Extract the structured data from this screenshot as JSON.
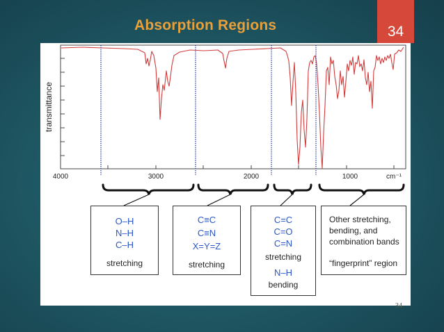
{
  "slide": {
    "title": "Absorption Regions",
    "number": "34",
    "page_number": "34"
  },
  "spectrum": {
    "ylabel": "transmittance",
    "xlabel_unit": "cm⁻¹",
    "tick_labels": [
      "4000",
      "3000",
      "2000",
      "1000"
    ]
  },
  "regions": [
    {
      "lines": [
        "O–H",
        "N–H",
        "C–H"
      ],
      "caption": "stretching"
    },
    {
      "lines": [
        "C≡C",
        "C≡N",
        "X=Y=Z"
      ],
      "caption": "stretching"
    },
    {
      "lines": [
        "C=C",
        "C=O",
        "C=N"
      ],
      "caption": "stretching",
      "extra": "N–H",
      "extra_caption": "bending"
    },
    {
      "text": [
        "Other stretching,",
        "bending, and",
        "combination bands"
      ],
      "caption": "“fingerprint” region"
    }
  ],
  "colors": {
    "title": "#e8a13a",
    "number_tab": "#d6483a",
    "spectrum_line": "#d23a3a",
    "divider": "#2233aa",
    "region_text": "#2a56c6"
  }
}
